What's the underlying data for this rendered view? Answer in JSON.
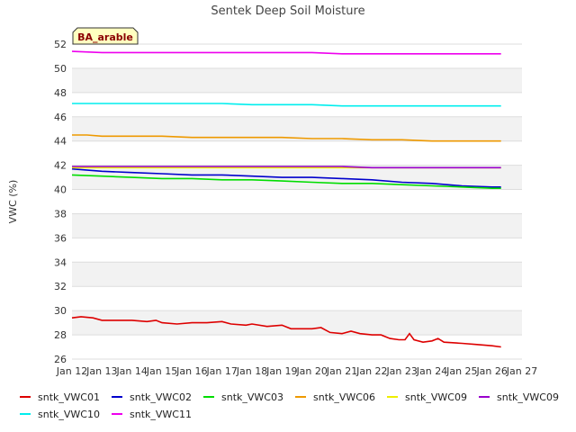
{
  "chart_data": {
    "type": "line",
    "title": "Sentek Deep Soil Moisture",
    "ylabel": "VWC (%)",
    "xlabel": "",
    "ylim": [
      26,
      52
    ],
    "yticks": [
      26,
      28,
      30,
      32,
      34,
      36,
      38,
      40,
      42,
      44,
      46,
      48,
      50,
      52
    ],
    "xlim": [
      12,
      27
    ],
    "xticks": [
      {
        "v": 12,
        "label": "Jan 12"
      },
      {
        "v": 13,
        "label": "Jan 13"
      },
      {
        "v": 14,
        "label": "Jan 14"
      },
      {
        "v": 15,
        "label": "Jan 15"
      },
      {
        "v": 16,
        "label": "Jan 16"
      },
      {
        "v": 17,
        "label": "Jan 17"
      },
      {
        "v": 18,
        "label": "Jan 18"
      },
      {
        "v": 19,
        "label": "Jan 19"
      },
      {
        "v": 20,
        "label": "Jan 20"
      },
      {
        "v": 21,
        "label": "Jan 21"
      },
      {
        "v": 22,
        "label": "Jan 22"
      },
      {
        "v": 23,
        "label": "Jan 23"
      },
      {
        "v": 24,
        "label": "Jan 24"
      },
      {
        "v": 25,
        "label": "Jan 25"
      },
      {
        "v": 26,
        "label": "Jan 26"
      },
      {
        "v": 27,
        "label": "Jan 27"
      }
    ],
    "grid": "horizontal bands",
    "legend_position": "bottom",
    "site_label": "BA_arable",
    "series": [
      {
        "name": "sntk_VWC01",
        "color": "#dd0000",
        "points": [
          [
            12,
            29.4
          ],
          [
            12.3,
            29.5
          ],
          [
            12.7,
            29.4
          ],
          [
            13,
            29.2
          ],
          [
            13.5,
            29.2
          ],
          [
            14,
            29.2
          ],
          [
            14.5,
            29.1
          ],
          [
            14.8,
            29.2
          ],
          [
            15,
            29.0
          ],
          [
            15.5,
            28.9
          ],
          [
            16,
            29.0
          ],
          [
            16.5,
            29.0
          ],
          [
            17,
            29.1
          ],
          [
            17.3,
            28.9
          ],
          [
            17.8,
            28.8
          ],
          [
            18,
            28.9
          ],
          [
            18.5,
            28.7
          ],
          [
            19,
            28.8
          ],
          [
            19.3,
            28.5
          ],
          [
            20,
            28.5
          ],
          [
            20.3,
            28.6
          ],
          [
            20.6,
            28.2
          ],
          [
            21,
            28.1
          ],
          [
            21.3,
            28.3
          ],
          [
            21.6,
            28.1
          ],
          [
            22,
            28.0
          ],
          [
            22.3,
            28.0
          ],
          [
            22.6,
            27.7
          ],
          [
            22.9,
            27.6
          ],
          [
            23.1,
            27.6
          ],
          [
            23.25,
            28.1
          ],
          [
            23.4,
            27.6
          ],
          [
            23.7,
            27.4
          ],
          [
            24,
            27.5
          ],
          [
            24.2,
            27.7
          ],
          [
            24.4,
            27.4
          ],
          [
            25,
            27.3
          ],
          [
            25.5,
            27.2
          ],
          [
            26,
            27.1
          ],
          [
            26.3,
            27.0
          ]
        ]
      },
      {
        "name": "sntk_VWC02",
        "color": "#0000cc",
        "points": [
          [
            12,
            41.7
          ],
          [
            13,
            41.5
          ],
          [
            14,
            41.4
          ],
          [
            15,
            41.3
          ],
          [
            16,
            41.2
          ],
          [
            17,
            41.2
          ],
          [
            18,
            41.1
          ],
          [
            19,
            41.0
          ],
          [
            20,
            41.0
          ],
          [
            21,
            40.9
          ],
          [
            22,
            40.8
          ],
          [
            23,
            40.6
          ],
          [
            24,
            40.5
          ],
          [
            25,
            40.3
          ],
          [
            26,
            40.2
          ],
          [
            26.3,
            40.2
          ]
        ]
      },
      {
        "name": "sntk_VWC03",
        "color": "#00dd00",
        "points": [
          [
            12,
            41.2
          ],
          [
            13,
            41.1
          ],
          [
            14,
            41.0
          ],
          [
            15,
            40.9
          ],
          [
            16,
            40.9
          ],
          [
            17,
            40.8
          ],
          [
            18,
            40.8
          ],
          [
            19,
            40.7
          ],
          [
            20,
            40.6
          ],
          [
            21,
            40.5
          ],
          [
            22,
            40.5
          ],
          [
            23,
            40.4
          ],
          [
            24,
            40.3
          ],
          [
            25,
            40.2
          ],
          [
            26,
            40.1
          ],
          [
            26.3,
            40.1
          ]
        ]
      },
      {
        "name": "sntk_VWC06",
        "color": "#ee9900",
        "points": [
          [
            12,
            44.5
          ],
          [
            12.5,
            44.5
          ],
          [
            13,
            44.4
          ],
          [
            14,
            44.4
          ],
          [
            15,
            44.4
          ],
          [
            16,
            44.3
          ],
          [
            17,
            44.3
          ],
          [
            18,
            44.3
          ],
          [
            19,
            44.3
          ],
          [
            20,
            44.2
          ],
          [
            21,
            44.2
          ],
          [
            22,
            44.1
          ],
          [
            23,
            44.1
          ],
          [
            24,
            44.0
          ],
          [
            25,
            44.0
          ],
          [
            26,
            44.0
          ],
          [
            26.3,
            44.0
          ]
        ]
      },
      {
        "name": "sntk_VWC09",
        "color": "#eeee00",
        "points": [
          [
            12,
            41.8
          ],
          [
            13,
            41.8
          ],
          [
            14,
            41.8
          ],
          [
            15,
            41.8
          ],
          [
            16,
            41.8
          ],
          [
            17,
            41.8
          ],
          [
            18,
            41.8
          ],
          [
            19,
            41.8
          ],
          [
            20,
            41.8
          ],
          [
            21,
            41.8
          ],
          [
            22,
            41.8
          ],
          [
            23,
            41.8
          ],
          [
            24,
            41.8
          ],
          [
            25,
            41.8
          ],
          [
            26,
            41.8
          ],
          [
            26.3,
            41.8
          ]
        ]
      },
      {
        "name": "sntk_VWC09",
        "color": "#9900cc",
        "points": [
          [
            12,
            41.9
          ],
          [
            13,
            41.9
          ],
          [
            14,
            41.9
          ],
          [
            15,
            41.9
          ],
          [
            16,
            41.9
          ],
          [
            17,
            41.9
          ],
          [
            18,
            41.9
          ],
          [
            19,
            41.9
          ],
          [
            20,
            41.9
          ],
          [
            21,
            41.9
          ],
          [
            22,
            41.8
          ],
          [
            23,
            41.8
          ],
          [
            24,
            41.8
          ],
          [
            25,
            41.8
          ],
          [
            26,
            41.8
          ],
          [
            26.3,
            41.8
          ]
        ]
      },
      {
        "name": "sntk_VWC10",
        "color": "#00eeee",
        "points": [
          [
            12,
            47.1
          ],
          [
            13,
            47.1
          ],
          [
            14,
            47.1
          ],
          [
            15,
            47.1
          ],
          [
            16,
            47.1
          ],
          [
            17,
            47.1
          ],
          [
            18,
            47.0
          ],
          [
            19,
            47.0
          ],
          [
            20,
            47.0
          ],
          [
            21,
            46.9
          ],
          [
            22,
            46.9
          ],
          [
            23,
            46.9
          ],
          [
            24,
            46.9
          ],
          [
            25,
            46.9
          ],
          [
            26,
            46.9
          ],
          [
            26.3,
            46.9
          ]
        ]
      },
      {
        "name": "sntk_VWC11",
        "color": "#ee00ee",
        "points": [
          [
            12,
            51.4
          ],
          [
            13,
            51.3
          ],
          [
            14,
            51.3
          ],
          [
            15,
            51.3
          ],
          [
            16,
            51.3
          ],
          [
            17,
            51.3
          ],
          [
            18,
            51.3
          ],
          [
            19,
            51.3
          ],
          [
            20,
            51.3
          ],
          [
            21,
            51.2
          ],
          [
            22,
            51.2
          ],
          [
            23,
            51.2
          ],
          [
            24,
            51.2
          ],
          [
            25,
            51.2
          ],
          [
            26,
            51.2
          ],
          [
            26.3,
            51.2
          ]
        ]
      }
    ]
  }
}
